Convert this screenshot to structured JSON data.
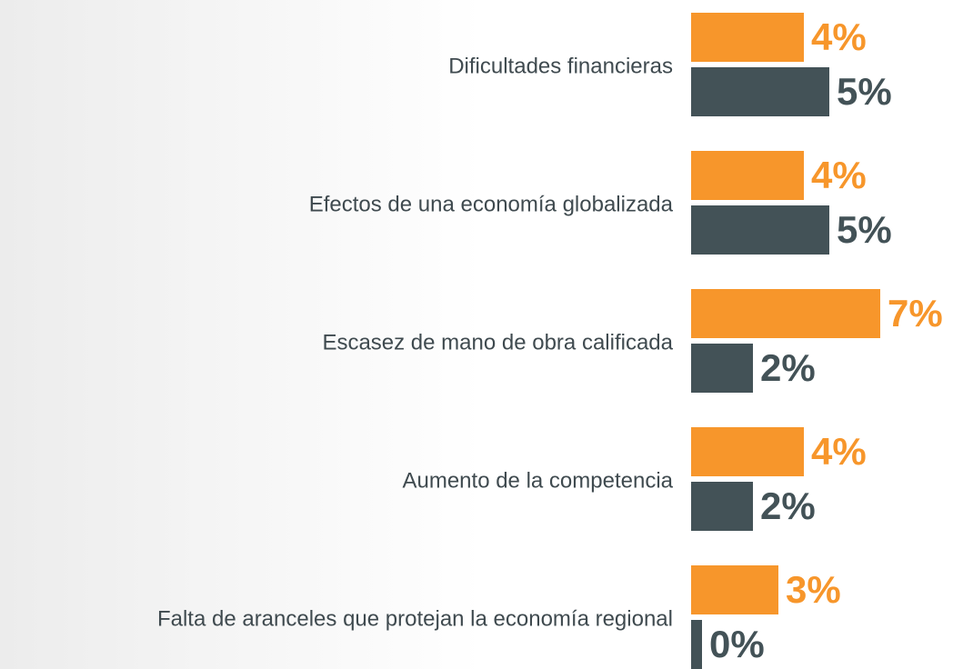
{
  "chart_data": {
    "type": "bar",
    "orientation": "horizontal",
    "categories": [
      "Dificultades financieras",
      "Efectos de una economía globalizada",
      "Escasez de mano de obra calificada",
      "Aumento de la competencia",
      "Falta de aranceles que protejan la economía regional"
    ],
    "series": [
      {
        "color": "#f7962b",
        "values": [
          4,
          4,
          7,
          4,
          3
        ],
        "value_labels": [
          "4%",
          "4%",
          "7%",
          "4%",
          "3%"
        ]
      },
      {
        "color": "#435257",
        "values": [
          5,
          5,
          2,
          2,
          0
        ],
        "value_labels": [
          "5%",
          "5%",
          "2%",
          "2%",
          "0%"
        ]
      }
    ]
  }
}
